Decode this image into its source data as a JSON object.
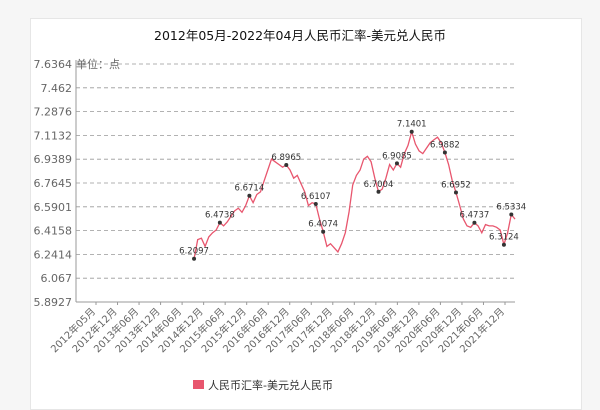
{
  "chart_data": {
    "type": "line",
    "title": "2012年05月-2022年04月人民币汇率-美元兑人民币",
    "unit_label": "单位：点",
    "ylim": [
      5.8927,
      7.6364
    ],
    "y_ticks": [
      "7.6364",
      "7.462",
      "7.2876",
      "7.1132",
      "6.9389",
      "6.7645",
      "6.5901",
      "6.4158",
      "6.2414",
      "6.067",
      "5.8927"
    ],
    "x_ticks": [
      "2012年05月",
      "2012年12月",
      "2013年06月",
      "2013年12月",
      "2014年06月",
      "2014年12月",
      "2015年06月",
      "2015年12月",
      "2016年06月",
      "2016年12月",
      "2017年06月",
      "2017年12月",
      "2018年06月",
      "2018年12月",
      "2019年06月",
      "2019年12月",
      "2020年06月",
      "2020年12月",
      "2021年06月",
      "2021年12月"
    ],
    "x_range": [
      "2012-05",
      "2022-04"
    ],
    "grid": true,
    "legend_position": "bottom",
    "series": [
      {
        "name": "人民币汇率-美元兑人民币",
        "color": "#e8566e",
        "x": [
          "2015-01",
          "2015-02",
          "2015-03",
          "2015-04",
          "2015-05",
          "2015-06",
          "2015-07",
          "2015-08",
          "2015-09",
          "2015-10",
          "2015-11",
          "2015-12",
          "2016-01",
          "2016-02",
          "2016-03",
          "2016-04",
          "2016-05",
          "2016-06",
          "2016-07",
          "2016-08",
          "2016-09",
          "2016-10",
          "2016-11",
          "2016-12",
          "2017-01",
          "2017-02",
          "2017-03",
          "2017-04",
          "2017-05",
          "2017-06",
          "2017-07",
          "2017-08",
          "2017-09",
          "2017-10",
          "2017-11",
          "2017-12",
          "2018-01",
          "2018-02",
          "2018-03",
          "2018-04",
          "2018-05",
          "2018-06",
          "2018-07",
          "2018-08",
          "2018-09",
          "2018-10",
          "2018-11",
          "2018-12",
          "2019-01",
          "2019-02",
          "2019-03",
          "2019-04",
          "2019-05",
          "2019-06",
          "2019-07",
          "2019-08",
          "2019-09",
          "2019-10",
          "2019-11",
          "2019-12",
          "2020-01",
          "2020-02",
          "2020-03",
          "2020-04",
          "2020-05",
          "2020-06",
          "2020-07",
          "2020-08",
          "2020-09",
          "2020-10",
          "2020-11",
          "2020-12",
          "2021-01",
          "2021-02",
          "2021-03",
          "2021-04",
          "2021-05",
          "2021-06",
          "2021-07",
          "2021-08",
          "2021-09",
          "2021-10",
          "2021-11",
          "2021-12",
          "2022-01",
          "2022-02",
          "2022-03",
          "2022-04"
        ],
        "values": [
          6.2097,
          6.35,
          6.36,
          6.3,
          6.37,
          6.4,
          6.42,
          6.4738,
          6.45,
          6.48,
          6.52,
          6.56,
          6.58,
          6.55,
          6.6,
          6.6714,
          6.62,
          6.68,
          6.7,
          6.78,
          6.86,
          6.94,
          6.92,
          6.9,
          6.88,
          6.8965,
          6.86,
          6.8,
          6.82,
          6.76,
          6.7,
          6.6,
          6.62,
          6.6107,
          6.5,
          6.4074,
          6.3,
          6.32,
          6.29,
          6.26,
          6.32,
          6.4,
          6.55,
          6.75,
          6.82,
          6.86,
          6.94,
          6.96,
          6.92,
          6.8,
          6.7004,
          6.72,
          6.8,
          6.9,
          6.86,
          6.9085,
          6.88,
          6.98,
          7.04,
          7.1401,
          7.05,
          7.0,
          6.98,
          7.02,
          7.06,
          7.08,
          7.1,
          7.06,
          6.9882,
          6.9,
          6.78,
          6.6952,
          6.6,
          6.5,
          6.45,
          6.44,
          6.4737,
          6.45,
          6.4,
          6.46,
          6.45,
          6.45,
          6.44,
          6.42,
          6.3124,
          6.4,
          6.5334,
          6.5
        ],
        "data_labels": [
          {
            "x": "2015-01",
            "text": "6.2097"
          },
          {
            "x": "2015-08",
            "text": "6.4738"
          },
          {
            "x": "2016-04",
            "text": "6.6714"
          },
          {
            "x": "2017-02",
            "text": "6.8965"
          },
          {
            "x": "2017-10",
            "text": "6.6107"
          },
          {
            "x": "2017-12",
            "text": "6.4074"
          },
          {
            "x": "2019-03",
            "text": "6.7004"
          },
          {
            "x": "2019-08",
            "text": "6.9085"
          },
          {
            "x": "2019-12",
            "text": "7.1401"
          },
          {
            "x": "2020-09",
            "text": "6.9882"
          },
          {
            "x": "2020-12",
            "text": "6.6952"
          },
          {
            "x": "2021-05",
            "text": "6.4737"
          },
          {
            "x": "2022-01",
            "text": "6.3124"
          },
          {
            "x": "2022-03",
            "text": "6.5334"
          }
        ]
      }
    ]
  }
}
